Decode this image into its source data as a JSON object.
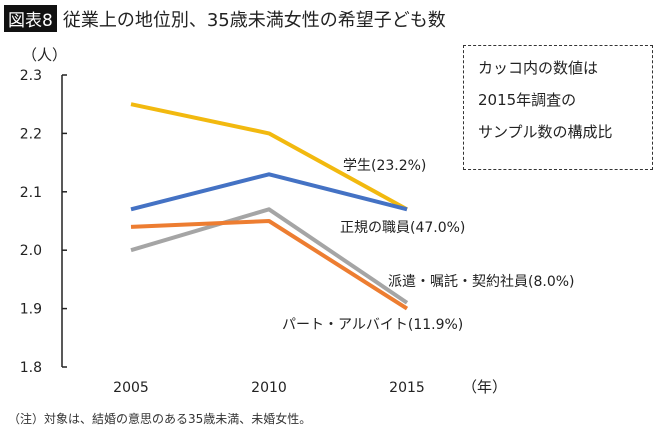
{
  "header": {
    "badge": "図表8",
    "title": "従業上の地位別、35歳未満女性の希望子ども数"
  },
  "note": {
    "lines": [
      "カッコ内の数値は",
      "2015年調査の",
      "サンプル数の構成比"
    ]
  },
  "footnote": "（注）対象は、結婚の意思のある35歳未満、未婚女性。",
  "chart_data": {
    "type": "line",
    "title": "従業上の地位別、35歳未満女性の希望子ども数",
    "ylabel": "（人）",
    "xlabel": "（年）",
    "categories": [
      "2005",
      "2010",
      "2015"
    ],
    "ylim": [
      1.8,
      2.3
    ],
    "yticks": [
      "1.8",
      "1.9",
      "2.0",
      "2.1",
      "2.2",
      "2.3"
    ],
    "grid": false,
    "series": [
      {
        "name": "学生(23.2%)",
        "values": [
          2.25,
          2.2,
          2.07
        ],
        "color": "#F2B90F"
      },
      {
        "name": "正規の職員(47.0%)",
        "values": [
          2.07,
          2.13,
          2.07
        ],
        "color": "#4472C4"
      },
      {
        "name": "派遣・嘱託・契約社員(8.0%)",
        "values": [
          2.0,
          2.07,
          1.91
        ],
        "color": "#A5A5A5"
      },
      {
        "name": "パート・アルバイト(11.9%)",
        "values": [
          2.04,
          2.05,
          1.9
        ],
        "color": "#ED7D31"
      }
    ]
  }
}
